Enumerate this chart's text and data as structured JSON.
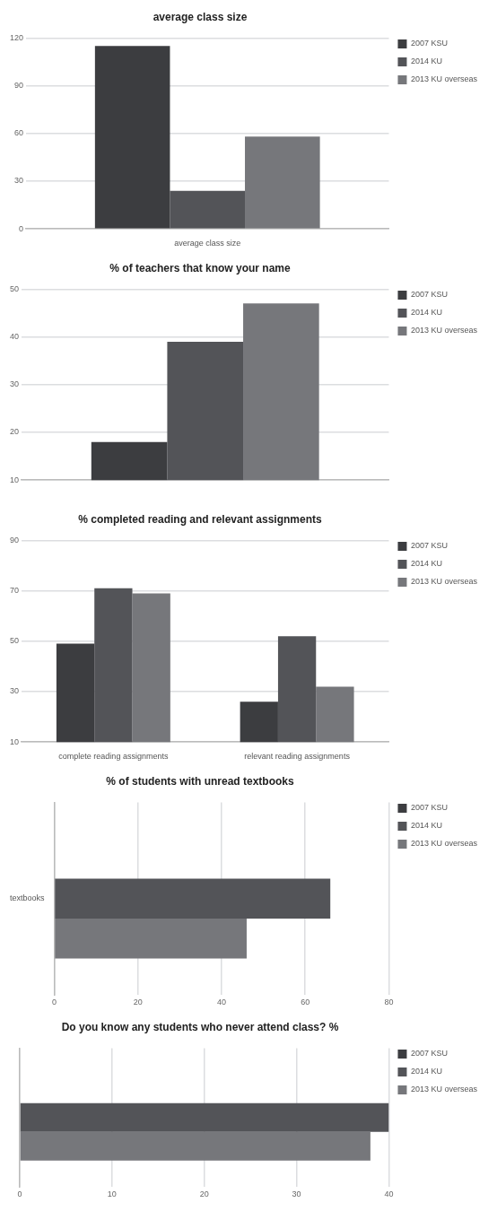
{
  "chart_data": [
    {
      "type": "bar",
      "title": "average class size",
      "categories": [
        "average class size"
      ],
      "series": [
        {
          "name": "2007 KSU",
          "color": "#3c3d40",
          "values": [
            115
          ]
        },
        {
          "name": "2014 KU",
          "color": "#535458",
          "values": [
            24
          ]
        },
        {
          "name": "2013 KU overseas",
          "color": "#76777b",
          "values": [
            58
          ]
        }
      ],
      "ylim": [
        0,
        120
      ],
      "yticks": [
        0,
        30,
        60,
        90,
        120
      ],
      "grid": "y",
      "legend": "top right"
    },
    {
      "type": "bar",
      "title": "% of teachers that know your name",
      "categories": [
        null
      ],
      "series": [
        {
          "name": "2007 KSU",
          "color": "#3c3d40",
          "values": [
            18
          ]
        },
        {
          "name": "2014 KU",
          "color": "#535458",
          "values": [
            39
          ]
        },
        {
          "name": "2013 KU overseas",
          "color": "#76777b",
          "values": [
            47
          ]
        }
      ],
      "ylim": [
        10,
        50
      ],
      "yticks": [
        10,
        20,
        30,
        40,
        50
      ],
      "grid": "y",
      "legend": "top right"
    },
    {
      "type": "bar",
      "title": "% completed reading and relevant assignments",
      "categories": [
        "complete reading assignments",
        "relevant reading assignments"
      ],
      "series": [
        {
          "name": "2007 KSU",
          "color": "#3c3d40",
          "values": [
            49,
            26
          ]
        },
        {
          "name": "2014 KU",
          "color": "#535458",
          "values": [
            71,
            52
          ]
        },
        {
          "name": "2013 KU overseas",
          "color": "#76777b",
          "values": [
            69,
            32
          ]
        }
      ],
      "ylim": [
        10,
        90
      ],
      "yticks": [
        10,
        30,
        50,
        70,
        90
      ],
      "grid": "y",
      "legend": "top right"
    },
    {
      "type": "bar",
      "orientation": "horizontal",
      "title": "% of students with unread textbooks",
      "categories": [
        "textbooks"
      ],
      "series": [
        {
          "name": "2007 KSU",
          "color": "#3c3d40",
          "values": [
            null
          ]
        },
        {
          "name": "2014 KU",
          "color": "#535458",
          "values": [
            66
          ]
        },
        {
          "name": "2013 KU overseas",
          "color": "#76777b",
          "values": [
            46
          ]
        }
      ],
      "xlim": [
        0,
        80
      ],
      "xticks": [
        0,
        20,
        40,
        60,
        80
      ],
      "grid": "x",
      "legend": "top right"
    },
    {
      "type": "bar",
      "orientation": "horizontal",
      "title": "Do you know any students who never attend class? %",
      "categories": [
        null
      ],
      "series": [
        {
          "name": "2007 KSU",
          "color": "#3c3d40",
          "values": [
            null
          ]
        },
        {
          "name": "2014 KU",
          "color": "#535458",
          "values": [
            40
          ]
        },
        {
          "name": "2013 KU overseas",
          "color": "#76777b",
          "values": [
            38
          ]
        }
      ],
      "xlim": [
        0,
        40
      ],
      "xticks": [
        0,
        10,
        20,
        30,
        40
      ],
      "grid": "x",
      "legend": "top right"
    }
  ]
}
